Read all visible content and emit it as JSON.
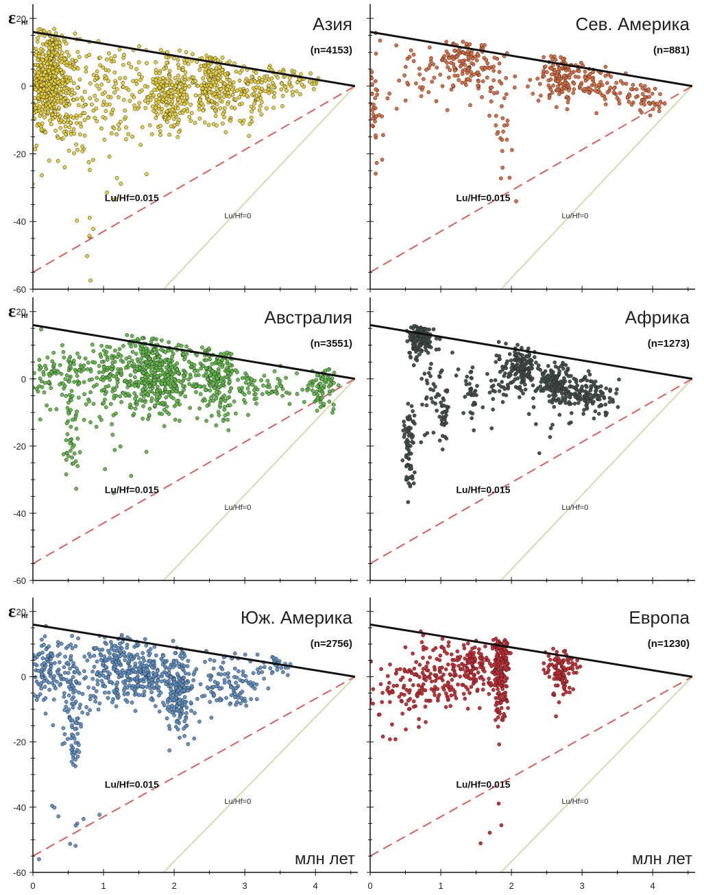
{
  "y_axis_symbol": "ε",
  "y_axis_subscript": "Hf",
  "x_units_label": "млн лет",
  "colors": {
    "depleted_mantle_line": "#111111",
    "luhf_0015_line": "#d9605a",
    "luhf_0_line": "#d7dab0"
  },
  "chart_data": [
    {
      "type": "scatter",
      "panel": "top-left",
      "title": "Азия",
      "n_label": "(n=4153)",
      "point_color": "#e7cf36",
      "xlim": [
        0,
        4.6
      ],
      "ylim": [
        -60,
        23
      ],
      "yticks": [
        20,
        0,
        -20,
        -40,
        -60
      ],
      "xticks": [],
      "show_units": false,
      "lines": {
        "depleted_mantle": [
          [
            0,
            16
          ],
          [
            4.56,
            0
          ]
        ],
        "luhf_0015": [
          [
            0,
            -55
          ],
          [
            4.56,
            0
          ]
        ],
        "luhf_0": [
          [
            1.85,
            -60
          ],
          [
            4.56,
            0
          ]
        ]
      },
      "line_labels": {
        "luhf_0015": "Lu/Hf=0.015",
        "luhf_0": "Lu/Hf=0"
      },
      "clusters": [
        {
          "x": 0.25,
          "y": 3,
          "sx": 0.08,
          "sy": 7,
          "n": 300
        },
        {
          "x": 0.08,
          "y": 0,
          "sx": 0.06,
          "sy": 8,
          "n": 120
        },
        {
          "x": 0.45,
          "y": -2,
          "sx": 0.1,
          "sy": 8,
          "n": 120
        },
        {
          "x": 0.75,
          "y": -5,
          "sx": 0.25,
          "sy": 9,
          "n": 110
        },
        {
          "x": 1.2,
          "y": -2,
          "sx": 0.3,
          "sy": 8,
          "n": 80
        },
        {
          "x": 1.9,
          "y": -4,
          "sx": 0.15,
          "sy": 5,
          "n": 160
        },
        {
          "x": 2.2,
          "y": 0,
          "sx": 0.25,
          "sy": 6,
          "n": 120
        },
        {
          "x": 2.6,
          "y": 1,
          "sx": 0.12,
          "sy": 6,
          "n": 140
        },
        {
          "x": 3.0,
          "y": -2,
          "sx": 0.25,
          "sy": 4,
          "n": 80
        },
        {
          "x": 3.4,
          "y": 1,
          "sx": 0.2,
          "sy": 3,
          "n": 60
        },
        {
          "x": 3.8,
          "y": 2,
          "sx": 0.15,
          "sy": 2,
          "n": 25
        },
        {
          "x": 0.8,
          "y": -45,
          "sx": 0.05,
          "sy": 5,
          "n": 6
        },
        {
          "x": 1.2,
          "y": -30,
          "sx": 0.1,
          "sy": 3,
          "n": 5
        }
      ]
    },
    {
      "type": "scatter",
      "panel": "top-right",
      "title": "Сев. Америка",
      "n_label": "(n=881)",
      "point_color": "#d9693b",
      "xlim": [
        0,
        4.6
      ],
      "ylim": [
        -60,
        23
      ],
      "yticks": [],
      "xticks": [],
      "show_units": false,
      "lines": {
        "depleted_mantle": [
          [
            0,
            16
          ],
          [
            4.56,
            0
          ]
        ],
        "luhf_0015": [
          [
            0,
            -55
          ],
          [
            4.56,
            0
          ]
        ],
        "luhf_0": [
          [
            1.85,
            -60
          ],
          [
            4.56,
            0
          ]
        ]
      },
      "line_labels": {
        "luhf_0015": "Lu/Hf=0.015",
        "luhf_0": "Lu/Hf=0"
      },
      "clusters": [
        {
          "x": 0.05,
          "y": -8,
          "sx": 0.05,
          "sy": 9,
          "n": 35
        },
        {
          "x": 0.6,
          "y": 4,
          "sx": 0.2,
          "sy": 4,
          "n": 30
        },
        {
          "x": 1.3,
          "y": 7,
          "sx": 0.2,
          "sy": 4,
          "n": 120
        },
        {
          "x": 1.7,
          "y": 2,
          "sx": 0.2,
          "sy": 5,
          "n": 40
        },
        {
          "x": 1.9,
          "y": -15,
          "sx": 0.08,
          "sy": 8,
          "n": 18
        },
        {
          "x": 2.7,
          "y": 3,
          "sx": 0.15,
          "sy": 4,
          "n": 120
        },
        {
          "x": 3.1,
          "y": 1,
          "sx": 0.2,
          "sy": 3,
          "n": 60
        },
        {
          "x": 3.6,
          "y": -2,
          "sx": 0.2,
          "sy": 2,
          "n": 40
        },
        {
          "x": 3.95,
          "y": -4,
          "sx": 0.1,
          "sy": 2,
          "n": 25
        }
      ]
    },
    {
      "type": "scatter",
      "panel": "middle-left",
      "title": "Австралия",
      "n_label": "(n=3551)",
      "point_color": "#5fb845",
      "xlim": [
        0,
        4.6
      ],
      "ylim": [
        -60,
        23
      ],
      "yticks": [
        20,
        0,
        -20,
        -40,
        -60
      ],
      "xticks": [],
      "show_units": false,
      "lines": {
        "depleted_mantle": [
          [
            0,
            16
          ],
          [
            4.56,
            0
          ]
        ],
        "luhf_0015": [
          [
            0,
            -55
          ],
          [
            4.56,
            0
          ]
        ],
        "luhf_0": [
          [
            1.85,
            -60
          ],
          [
            4.56,
            0
          ]
        ]
      },
      "line_labels": {
        "luhf_0015": "Lu/Hf=0.015",
        "luhf_0": "Lu/Hf=0"
      },
      "clusters": [
        {
          "x": 0.4,
          "y": 1,
          "sx": 0.25,
          "sy": 5,
          "n": 110
        },
        {
          "x": 0.55,
          "y": -15,
          "sx": 0.05,
          "sy": 9,
          "n": 45
        },
        {
          "x": 1.1,
          "y": 1,
          "sx": 0.2,
          "sy": 5,
          "n": 120
        },
        {
          "x": 1.65,
          "y": 2,
          "sx": 0.18,
          "sy": 6,
          "n": 280
        },
        {
          "x": 2.0,
          "y": 0,
          "sx": 0.2,
          "sy": 5,
          "n": 140
        },
        {
          "x": 2.6,
          "y": 0,
          "sx": 0.2,
          "sy": 6,
          "n": 200
        },
        {
          "x": 3.3,
          "y": -3,
          "sx": 0.25,
          "sy": 3,
          "n": 60
        },
        {
          "x": 4.1,
          "y": -3,
          "sx": 0.1,
          "sy": 3,
          "n": 80
        },
        {
          "x": 1.2,
          "y": -20,
          "sx": 0.25,
          "sy": 5,
          "n": 12
        }
      ]
    },
    {
      "type": "scatter",
      "panel": "middle-right",
      "title": "Африка",
      "n_label": "(n=1273)",
      "point_color": "#3e4a46",
      "xlim": [
        0,
        4.6
      ],
      "ylim": [
        -60,
        23
      ],
      "yticks": [],
      "xticks": [],
      "show_units": false,
      "lines": {
        "depleted_mantle": [
          [
            0,
            16
          ],
          [
            4.56,
            0
          ]
        ],
        "luhf_0015": [
          [
            0,
            -55
          ],
          [
            4.56,
            0
          ]
        ],
        "luhf_0": [
          [
            1.85,
            -60
          ],
          [
            4.56,
            0
          ]
        ]
      },
      "line_labels": {
        "luhf_0015": "Lu/Hf=0.015",
        "luhf_0": "Lu/Hf=0"
      },
      "clusters": [
        {
          "x": 0.7,
          "y": 12,
          "sx": 0.08,
          "sy": 3,
          "n": 150
        },
        {
          "x": 0.55,
          "y": -20,
          "sx": 0.04,
          "sy": 7,
          "n": 70
        },
        {
          "x": 0.9,
          "y": -4,
          "sx": 0.15,
          "sy": 7,
          "n": 40
        },
        {
          "x": 1.05,
          "y": -13,
          "sx": 0.03,
          "sy": 5,
          "n": 30
        },
        {
          "x": 1.45,
          "y": -3,
          "sx": 0.05,
          "sy": 4,
          "n": 30
        },
        {
          "x": 1.85,
          "y": 0,
          "sx": 0.1,
          "sy": 3,
          "n": 40
        },
        {
          "x": 2.15,
          "y": 4,
          "sx": 0.1,
          "sy": 3,
          "n": 120
        },
        {
          "x": 2.6,
          "y": -1,
          "sx": 0.12,
          "sy": 3,
          "n": 140
        },
        {
          "x": 3.1,
          "y": -5,
          "sx": 0.2,
          "sy": 3,
          "n": 130
        },
        {
          "x": 2.0,
          "y": -12,
          "sx": 0.3,
          "sy": 6,
          "n": 10
        }
      ]
    },
    {
      "type": "scatter",
      "panel": "bottom-left",
      "title": "Юж. Америка",
      "n_label": "(n=2756)",
      "point_color": "#5d8fc4",
      "xlim": [
        0,
        4.6
      ],
      "ylim": [
        -60,
        23
      ],
      "yticks": [
        20,
        0,
        -20,
        -40,
        -60
      ],
      "xticks": [
        0,
        1,
        2,
        3,
        4
      ],
      "show_units": true,
      "lines": {
        "depleted_mantle": [
          [
            0,
            16
          ],
          [
            4.56,
            0
          ]
        ],
        "luhf_0015": [
          [
            0,
            -55
          ],
          [
            4.56,
            0
          ]
        ],
        "luhf_0": [
          [
            1.85,
            -60
          ],
          [
            4.56,
            0
          ]
        ]
      },
      "line_labels": {
        "luhf_0015": "Lu/Hf=0.015",
        "luhf_0": "Lu/Hf=0"
      },
      "clusters": [
        {
          "x": 0.2,
          "y": 2,
          "sx": 0.1,
          "sy": 5,
          "n": 100
        },
        {
          "x": 0.55,
          "y": -5,
          "sx": 0.1,
          "sy": 8,
          "n": 90
        },
        {
          "x": 0.6,
          "y": -22,
          "sx": 0.04,
          "sy": 5,
          "n": 25
        },
        {
          "x": 1.2,
          "y": 2,
          "sx": 0.25,
          "sy": 5,
          "n": 250
        },
        {
          "x": 1.7,
          "y": 1,
          "sx": 0.15,
          "sy": 4,
          "n": 100
        },
        {
          "x": 2.05,
          "y": -4,
          "sx": 0.1,
          "sy": 6,
          "n": 200
        },
        {
          "x": 2.8,
          "y": -2,
          "sx": 0.25,
          "sy": 4,
          "n": 120
        },
        {
          "x": 3.4,
          "y": 4,
          "sx": 0.12,
          "sy": 2,
          "n": 25
        },
        {
          "x": 0.4,
          "y": -45,
          "sx": 0.3,
          "sy": 6,
          "n": 10
        }
      ]
    },
    {
      "type": "scatter",
      "panel": "bottom-right",
      "title": "Европа",
      "n_label": "(n=1230)",
      "point_color": "#c5282f",
      "xlim": [
        0,
        4.6
      ],
      "ylim": [
        -60,
        23
      ],
      "yticks": [],
      "xticks": [
        0,
        1,
        2,
        3,
        4
      ],
      "show_units": true,
      "lines": {
        "depleted_mantle": [
          [
            0,
            16
          ],
          [
            4.56,
            0
          ]
        ],
        "luhf_0015": [
          [
            0,
            -55
          ],
          [
            4.56,
            0
          ]
        ],
        "luhf_0": [
          [
            1.85,
            -60
          ],
          [
            4.56,
            0
          ]
        ]
      },
      "line_labels": {
        "luhf_0015": "Lu/Hf=0.015",
        "luhf_0": "Lu/Hf=0"
      },
      "clusters": [
        {
          "x": 0.5,
          "y": -4,
          "sx": 0.3,
          "sy": 7,
          "n": 90
        },
        {
          "x": 1.0,
          "y": 0,
          "sx": 0.2,
          "sy": 5,
          "n": 100
        },
        {
          "x": 1.5,
          "y": 3,
          "sx": 0.2,
          "sy": 4,
          "n": 130
        },
        {
          "x": 1.85,
          "y": 2,
          "sx": 0.06,
          "sy": 8,
          "n": 190
        },
        {
          "x": 2.7,
          "y": 2,
          "sx": 0.1,
          "sy": 4,
          "n": 110
        },
        {
          "x": 1.7,
          "y": -45,
          "sx": 0.15,
          "sy": 5,
          "n": 4
        }
      ]
    }
  ]
}
